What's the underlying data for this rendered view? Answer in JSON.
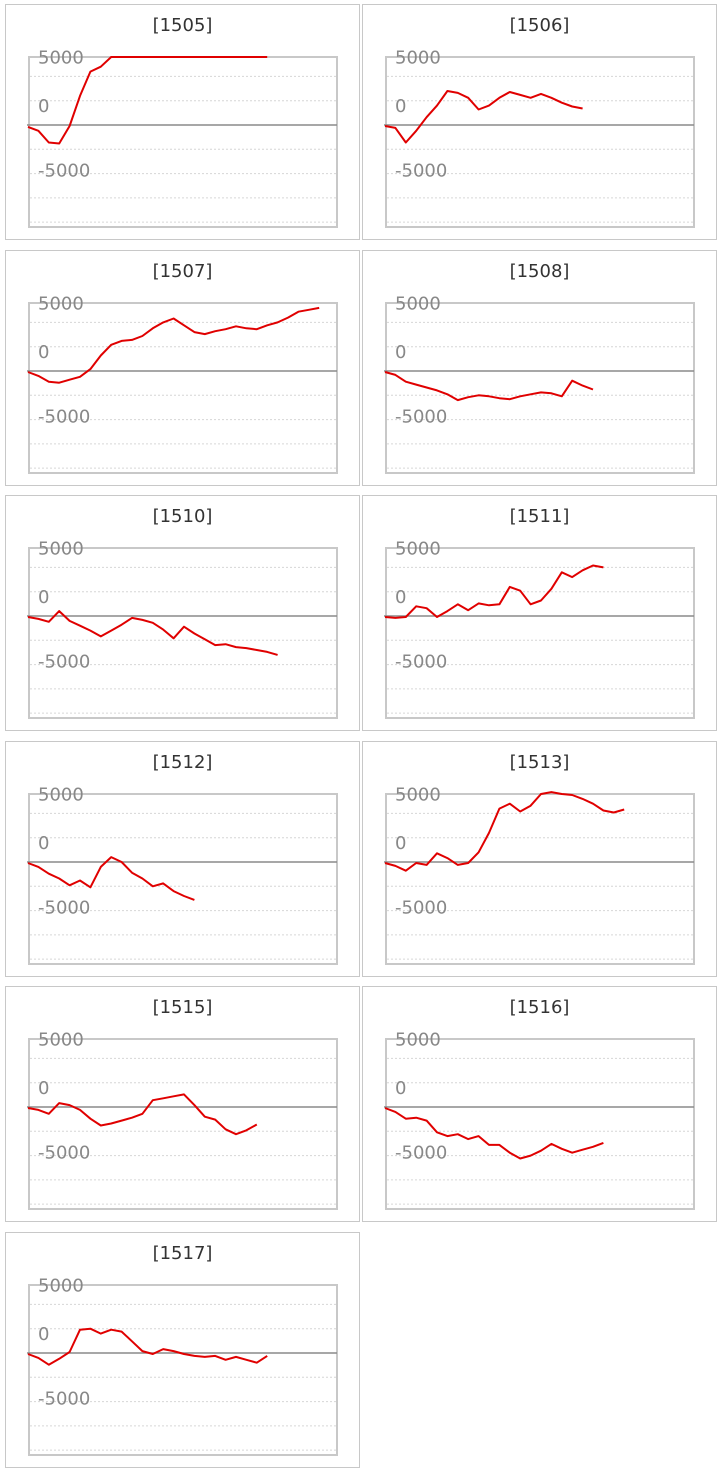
{
  "chart_data": [
    {
      "type": "line",
      "title": "[1505]",
      "y_ticks": [
        "5000",
        "0",
        "-5000"
      ],
      "grid": "on",
      "series": [
        {
          "values": [
            -200,
            -600,
            -1800,
            -1900,
            -100,
            3000,
            5500,
            6000,
            7000,
            7000,
            7000,
            7000,
            7000,
            7000,
            7000,
            7000,
            7000,
            7000,
            7000,
            7000,
            7000,
            7000,
            7000,
            7000
          ]
        }
      ],
      "color": "#e00000"
    },
    {
      "type": "line",
      "title": "[1506]",
      "y_ticks": [
        "5000",
        "0",
        "-5000"
      ],
      "grid": "on",
      "series": [
        {
          "values": [
            -100,
            -300,
            -1800,
            -600,
            800,
            2000,
            3500,
            3300,
            2800,
            1600,
            2000,
            2800,
            3400,
            3100,
            2800,
            3200,
            2800,
            2300,
            1900,
            1700
          ]
        }
      ],
      "color": "#e00000"
    },
    {
      "type": "line",
      "title": "[1507]",
      "y_ticks": [
        "5000",
        "0",
        "-5000"
      ],
      "grid": "on",
      "series": [
        {
          "values": [
            -100,
            -500,
            -1100,
            -1200,
            -900,
            -600,
            200,
            1600,
            2700,
            3100,
            3200,
            3600,
            4400,
            5000,
            5400,
            4700,
            4000,
            3800,
            4100,
            4300,
            4600,
            4400,
            4300,
            4700,
            5000,
            5500,
            6100,
            6300,
            6500
          ]
        }
      ],
      "color": "#e00000"
    },
    {
      "type": "line",
      "title": "[1508]",
      "y_ticks": [
        "5000",
        "0",
        "-5000"
      ],
      "grid": "on",
      "series": [
        {
          "values": [
            -100,
            -400,
            -1100,
            -1400,
            -1700,
            -2000,
            -2400,
            -3000,
            -2700,
            -2500,
            -2600,
            -2800,
            -2900,
            -2600,
            -2400,
            -2200,
            -2300,
            -2600,
            -1000,
            -1500,
            -1900
          ]
        }
      ],
      "color": "#e00000"
    },
    {
      "type": "line",
      "title": "[1510]",
      "y_ticks": [
        "5000",
        "0",
        "-5000"
      ],
      "grid": "on",
      "series": [
        {
          "values": [
            -100,
            -300,
            -600,
            500,
            -500,
            -1000,
            -1500,
            -2100,
            -1500,
            -900,
            -200,
            -400,
            -700,
            -1400,
            -2300,
            -1100,
            -1800,
            -2400,
            -3000,
            -2900,
            -3200,
            -3300,
            -3500,
            -3700,
            -4000
          ]
        }
      ],
      "color": "#e00000"
    },
    {
      "type": "line",
      "title": "[1511]",
      "y_ticks": [
        "5000",
        "0",
        "-5000"
      ],
      "grid": "on",
      "series": [
        {
          "values": [
            -100,
            -200,
            -100,
            1000,
            800,
            -100,
            500,
            1200,
            600,
            1300,
            1100,
            1200,
            3000,
            2600,
            1200,
            1600,
            2800,
            4500,
            4000,
            4700,
            5200,
            5000
          ]
        }
      ],
      "color": "#e00000"
    },
    {
      "type": "line",
      "title": "[1512]",
      "y_ticks": [
        "5000",
        "0",
        "-5000"
      ],
      "grid": "on",
      "series": [
        {
          "values": [
            -100,
            -500,
            -1200,
            -1700,
            -2400,
            -1900,
            -2600,
            -500,
            500,
            0,
            -1100,
            -1700,
            -2500,
            -2200,
            -3000,
            -3500,
            -3900
          ]
        }
      ],
      "color": "#e00000"
    },
    {
      "type": "line",
      "title": "[1513]",
      "y_ticks": [
        "5000",
        "0",
        "-5000"
      ],
      "grid": "on",
      "series": [
        {
          "values": [
            -100,
            -400,
            -900,
            -100,
            -300,
            900,
            400,
            -300,
            -100,
            1000,
            3000,
            5500,
            6000,
            5200,
            5800,
            7000,
            7200,
            7000,
            6900,
            6500,
            6000,
            5300,
            5100,
            5400
          ]
        }
      ],
      "color": "#e00000"
    },
    {
      "type": "line",
      "title": "[1515]",
      "y_ticks": [
        "5000",
        "0",
        "-5000"
      ],
      "grid": "on",
      "series": [
        {
          "values": [
            -100,
            -300,
            -700,
            400,
            200,
            -300,
            -1200,
            -1900,
            -1700,
            -1400,
            -1100,
            -700,
            700,
            900,
            1100,
            1300,
            200,
            -1000,
            -1300,
            -2300,
            -2800,
            -2400,
            -1800
          ]
        }
      ],
      "color": "#e00000"
    },
    {
      "type": "line",
      "title": "[1516]",
      "y_ticks": [
        "5000",
        "0",
        "-5000"
      ],
      "grid": "on",
      "series": [
        {
          "values": [
            -100,
            -500,
            -1200,
            -1100,
            -1400,
            -2600,
            -3000,
            -2800,
            -3300,
            -3000,
            -3900,
            -3900,
            -4700,
            -5300,
            -5000,
            -4500,
            -3800,
            -4300,
            -4700,
            -4400,
            -4100,
            -3700
          ]
        }
      ],
      "color": "#e00000"
    },
    {
      "type": "line",
      "title": "[1517]",
      "y_ticks": [
        "5000",
        "0",
        "-5000"
      ],
      "grid": "on",
      "series": [
        {
          "values": [
            -100,
            -500,
            -1200,
            -600,
            100,
            2400,
            2500,
            2000,
            2400,
            2200,
            1200,
            200,
            -100,
            400,
            200,
            -100,
            -300,
            -400,
            -300,
            -700,
            -400,
            -700,
            -1000,
            -300
          ]
        }
      ],
      "color": "#e00000"
    }
  ]
}
